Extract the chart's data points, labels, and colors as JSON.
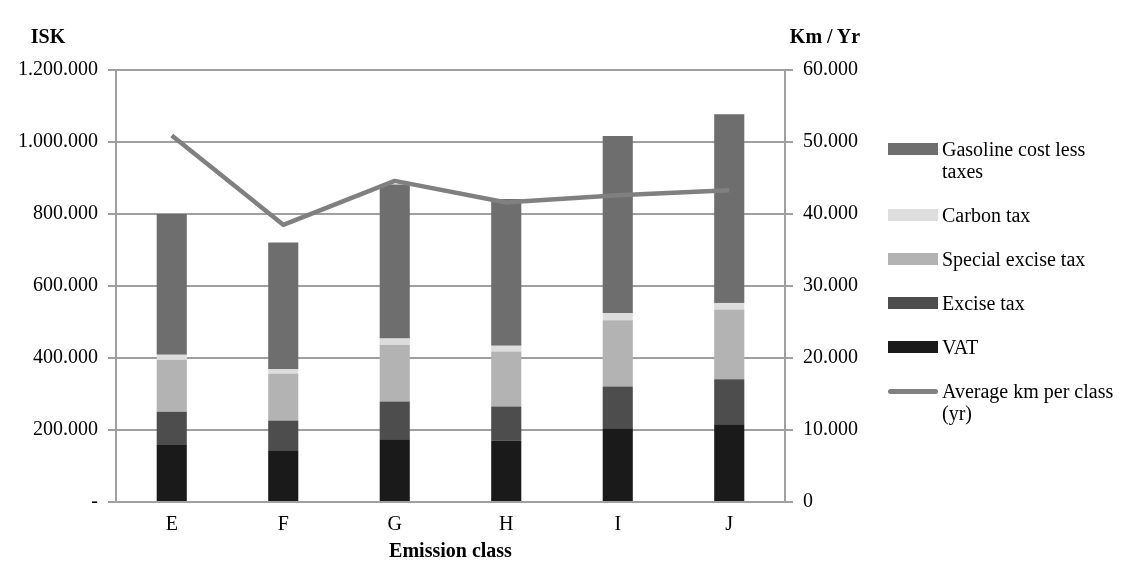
{
  "chart_data": {
    "type": "bar",
    "stacked": true,
    "xlabel": "Emission class",
    "ylabel": "ISK",
    "y2label": "Km / Yr",
    "categories": [
      "E",
      "F",
      "G",
      "H",
      "I",
      "J"
    ],
    "series": [
      {
        "name": "VAT",
        "color": "#1a1a1a",
        "values": [
          158000,
          144000,
          174000,
          170000,
          205000,
          216000
        ]
      },
      {
        "name": "Excise tax",
        "color": "#4d4d4d",
        "values": [
          93000,
          82000,
          105000,
          95000,
          116000,
          125000
        ]
      },
      {
        "name": "Special excise tax",
        "color": "#b3b3b3",
        "values": [
          144000,
          130000,
          158000,
          153000,
          184000,
          194000
        ]
      },
      {
        "name": "Carbon tax",
        "color": "#dddddd",
        "values": [
          14000,
          13000,
          17000,
          16000,
          19000,
          18000
        ]
      },
      {
        "name": "Gasoline cost less taxes",
        "color": "#6e6e6e",
        "values": [
          391000,
          352000,
          428000,
          408000,
          493000,
          524000
        ]
      },
      {
        "name": "Average km per class (yr)",
        "type": "line",
        "axis": "y2",
        "color": "#808080",
        "values": [
          50900,
          38500,
          44600,
          41600,
          42600,
          43300
        ]
      }
    ],
    "ylim": [
      0,
      1200000
    ],
    "yticks": [
      {
        "value": 0,
        "label": "-"
      },
      {
        "value": 200000,
        "label": "200.000"
      },
      {
        "value": 400000,
        "label": "400.000"
      },
      {
        "value": 600000,
        "label": "600.000"
      },
      {
        "value": 800000,
        "label": "800.000"
      },
      {
        "value": 1000000,
        "label": "1.000.000"
      },
      {
        "value": 1200000,
        "label": "1.200.000"
      }
    ],
    "y2lim": [
      0,
      60000
    ],
    "y2ticks": [
      0,
      {
        "value": 10000,
        "label": "10.000"
      },
      {
        "value": 20000,
        "label": "20.000"
      },
      {
        "value": 30000,
        "label": "30.000"
      },
      {
        "value": 40000,
        "label": "40.000"
      },
      {
        "value": 50000,
        "label": "50.000"
      },
      {
        "value": 60000,
        "label": "60.000"
      }
    ],
    "grid": "y",
    "legend": "right",
    "marker": "none",
    "line_style": "solid"
  }
}
